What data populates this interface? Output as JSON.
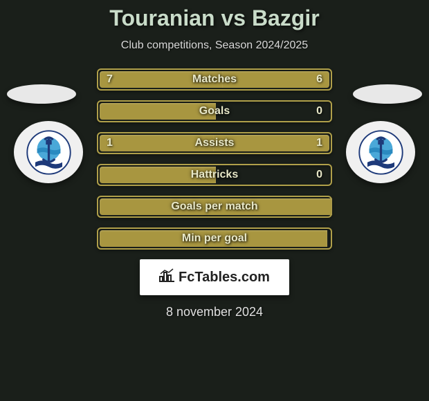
{
  "title": {
    "player1": "Touranian",
    "vs": "vs",
    "player2": "Bazgir",
    "color": "#c9dcc9"
  },
  "subtitle": "Club competitions, Season 2024/2025",
  "colors": {
    "background": "#1a1f1a",
    "bar_border": "#b0a04a",
    "bar_fill": "#a89640",
    "text": "#e8e8c8"
  },
  "stats": [
    {
      "label": "Matches",
      "left_val": "7",
      "right_val": "6",
      "left_pct": 54,
      "right_pct": 46,
      "show_vals": true
    },
    {
      "label": "Goals",
      "left_val": "",
      "right_val": "0",
      "left_pct": 50,
      "right_pct": 0,
      "show_vals": true
    },
    {
      "label": "Assists",
      "left_val": "1",
      "right_val": "1",
      "left_pct": 50,
      "right_pct": 50,
      "show_vals": true
    },
    {
      "label": "Hattricks",
      "left_val": "",
      "right_val": "0",
      "left_pct": 50,
      "right_pct": 0,
      "show_vals": true
    },
    {
      "label": "Goals per match",
      "left_val": "",
      "right_val": "",
      "left_pct": 100,
      "right_pct": 0,
      "show_vals": false
    },
    {
      "label": "Min per goal",
      "left_val": "",
      "right_val": "",
      "left_pct": 98,
      "right_pct": 0,
      "show_vals": false
    }
  ],
  "branding": "FcTables.com",
  "date": "8 november 2024",
  "crest": {
    "anchor_color": "#1e3a7a",
    "wave_color": "#4aa8d8",
    "inner_bg": "#ffffff"
  }
}
